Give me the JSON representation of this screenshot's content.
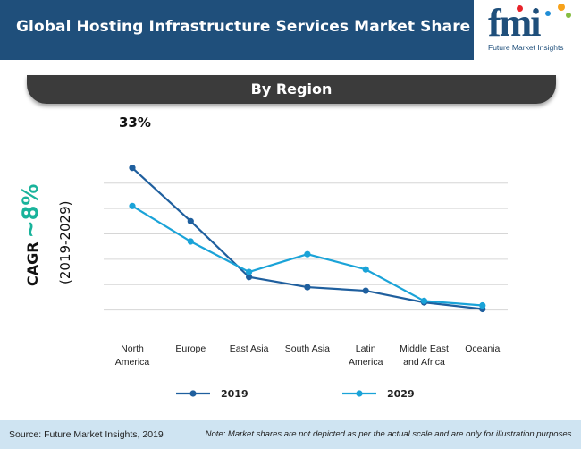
{
  "header": {
    "title": "Global Hosting Infrastructure Services Market Share (%)"
  },
  "logo": {
    "text": "fmi",
    "caption": "Future Market Insights",
    "dot_colors": [
      "#e8232a",
      "#f7a21b",
      "#1f8dd6",
      "#86bd41"
    ]
  },
  "region_bar": {
    "label": "By Region"
  },
  "annotations": {
    "peak": "33%"
  },
  "cagr": {
    "word": "CAGR",
    "value": "~8%",
    "period": "(2019-2029)"
  },
  "colors": {
    "s2019": "#1f5f9e",
    "s2029": "#1aa3d8",
    "grid": "#d6d6d6",
    "header": "#1f4f7b",
    "cagr": "#19b39b"
  },
  "chart_data": {
    "type": "line",
    "title": "Global Hosting Infrastructure Services Market Share (%)",
    "subtitle": "By Region",
    "categories": [
      "North America",
      "Europe",
      "East Asia",
      "South Asia",
      "Latin America",
      "Middle East and Africa",
      "Oceania"
    ],
    "category_lines": [
      [
        "North",
        "America"
      ],
      [
        "Europe"
      ],
      [
        "East Asia"
      ],
      [
        "South Asia"
      ],
      [
        "Latin",
        "America"
      ],
      [
        "Middle East",
        "and Africa"
      ],
      [
        "Oceania"
      ]
    ],
    "series": [
      {
        "name": "2019",
        "values": [
          33,
          22.5,
          11.5,
          9.5,
          8.8,
          6.5,
          5.2
        ]
      },
      {
        "name": "2029",
        "values": [
          25.5,
          18.5,
          12.5,
          16,
          13,
          6.8,
          5.9
        ]
      }
    ],
    "ylim": [
      0,
      40
    ],
    "yticks": [
      5,
      10,
      15,
      20,
      25,
      30
    ],
    "grid": true,
    "legend": "bottom-center"
  },
  "footer": {
    "source": "Source: Future Market Insights, 2019",
    "note": "Note: Market shares are not depicted as per the actual scale and are only for illustration purposes."
  }
}
